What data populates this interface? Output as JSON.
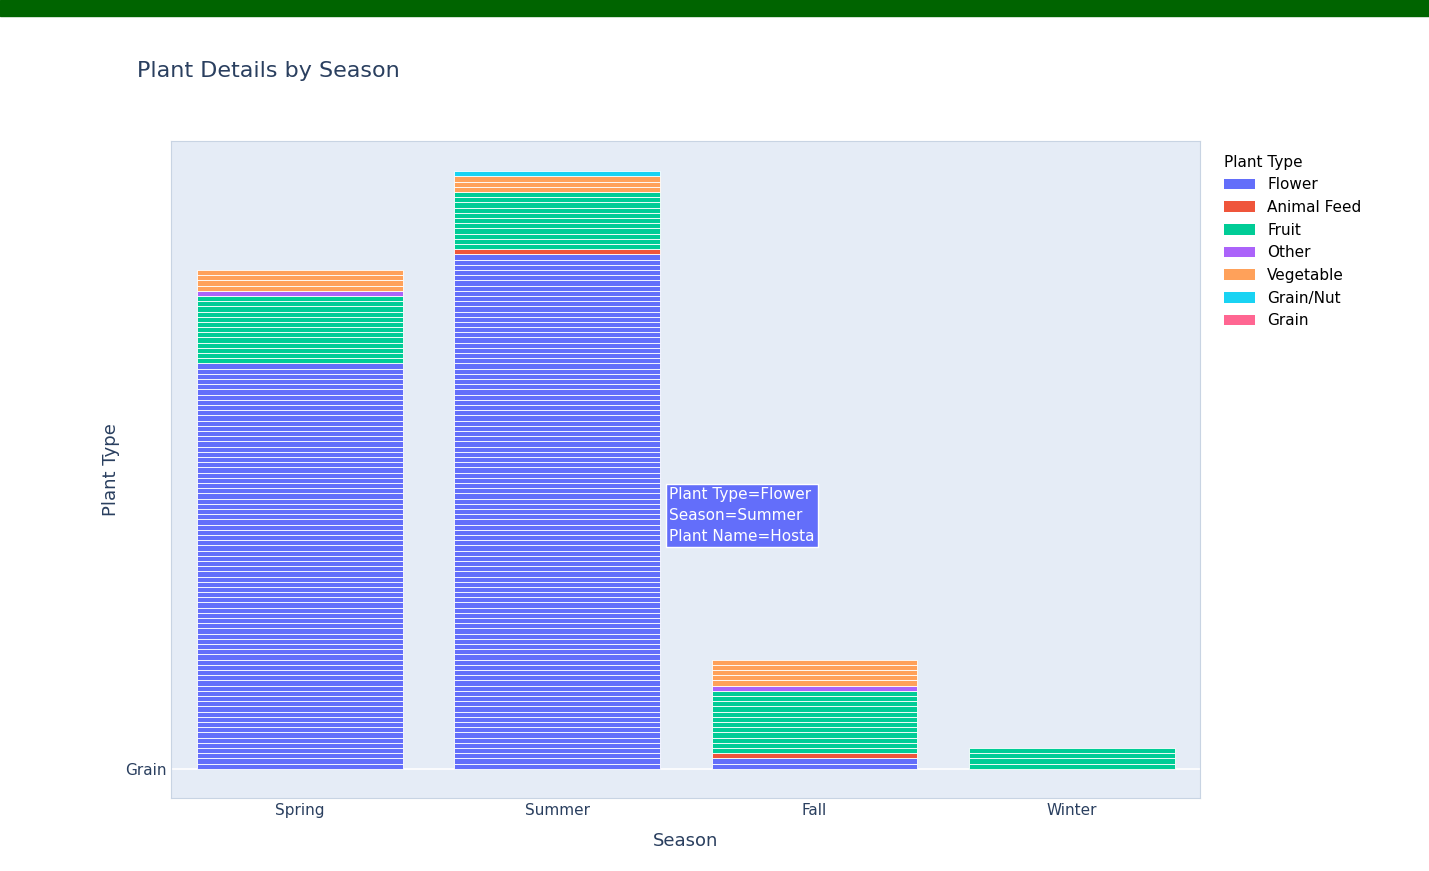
{
  "chart_data": {
    "type": "bar",
    "title": "Plant Details by Season",
    "x_label": "Season",
    "y_label": "Plant Type",
    "categories": [
      "Spring",
      "Summer",
      "Fall",
      "Winter"
    ],
    "stacked": true,
    "series": [
      {
        "name": "Flower",
        "color": "#636efa",
        "values": [
          78,
          99,
          2,
          0
        ]
      },
      {
        "name": "Animal Feed",
        "color": "#ef553b",
        "values": [
          0,
          1,
          1,
          0
        ]
      },
      {
        "name": "Fruit",
        "color": "#00cc96",
        "values": [
          13,
          11,
          12,
          4
        ]
      },
      {
        "name": "Other",
        "color": "#ab63fa",
        "values": [
          1,
          0,
          1,
          0
        ]
      },
      {
        "name": "Vegetable",
        "color": "#ffa15a",
        "values": [
          4,
          3,
          5,
          0
        ]
      },
      {
        "name": "Grain/Nut",
        "color": "#19d3f3",
        "values": [
          0,
          1,
          0,
          0
        ]
      },
      {
        "name": "Grain",
        "color": "#ff6692",
        "values": [
          0,
          0,
          0,
          0
        ]
      }
    ],
    "ylim": [
      -5.6,
      120.8
    ],
    "yticks": [
      {
        "value": 0,
        "label": "Grain"
      }
    ],
    "grid": true,
    "legend": "upper left",
    "legend_title": "Plant Type",
    "annotations": [
      {
        "text": "Plant Type=Flower\nSeason=Summer\nPlant Name=Hosta",
        "color": "#636efa"
      }
    ]
  }
}
